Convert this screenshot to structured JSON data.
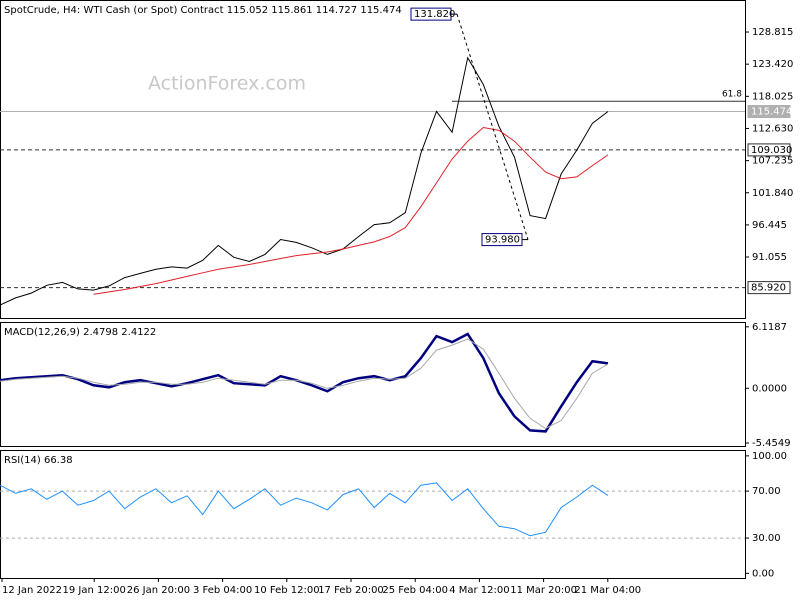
{
  "chart_data": [
    {
      "type": "line",
      "title": "SpotCrude, H4:  WTI Cash (or Spot) Contract  115.052 115.861 114.727 115.474",
      "watermark": "ActionForex.com",
      "ylim": [
        80.82,
        134.19
      ],
      "yticks": [
        128.815,
        {
          "value": 123.42,
          "label": "123.420"
        },
        118.025,
        {
          "value": 112.63,
          "label": "112.630"
        },
        107.235,
        {
          "value": 101.84,
          "label": "101.840"
        },
        96.445,
        91.055
      ],
      "series": [
        {
          "color": "#000000",
          "values": [
            83,
            84.2,
            85,
            86.3,
            86.8,
            85.7,
            85.5,
            86.2,
            87.6,
            88.3,
            89,
            89.4,
            89.2,
            90.5,
            93,
            91,
            90.3,
            91.5,
            94,
            93.5,
            92.6,
            91.5,
            92.4,
            94.5,
            96.5,
            96.8,
            98.5,
            108.5,
            115.5,
            112,
            124.5,
            120,
            113,
            107.8,
            98,
            97.5,
            105,
            109,
            113.5,
            115.474
          ]
        },
        {
          "color": "#e0202a",
          "values": [
            null,
            null,
            null,
            null,
            null,
            null,
            84.8,
            85.2,
            85.6,
            86.1,
            86.6,
            87.2,
            87.8,
            88.4,
            89,
            89.4,
            89.8,
            90.3,
            90.8,
            91.3,
            91.6,
            91.9,
            92.4,
            93,
            93.6,
            94.5,
            96,
            99.5,
            103.5,
            107.5,
            110.5,
            112.8,
            112.3,
            110.5,
            107.8,
            105.3,
            104.2,
            104.5,
            106.4,
            108.2
          ]
        }
      ],
      "levels": [
        {
          "value": 115.474,
          "label": "115.474",
          "style": "current",
          "color": "#b0b0b0"
        },
        {
          "value": 109.03,
          "label": "109.030",
          "style": "dashed",
          "color": "#303030"
        },
        {
          "value": 85.92,
          "label": "85.920",
          "style": "dashed",
          "color": "#303030"
        },
        {
          "value": 117.2,
          "label": "61.8",
          "style": "fib",
          "color": "#303030"
        }
      ],
      "annotations": [
        {
          "value": 131.82,
          "label": "131.820"
        },
        {
          "value": 93.98,
          "label": "93.980"
        }
      ]
    },
    {
      "type": "line",
      "title": "MACD(12,26,9) 2.4798 2.4122",
      "ylim": [
        -5.75,
        6.6
      ],
      "yticks": [
        6.1187,
        {
          "value": 0,
          "label": "0.0000"
        },
        -5.4549
      ],
      "series": [
        {
          "color": "#000080",
          "values": [
            0.8,
            1,
            1.1,
            1.2,
            1.3,
            0.9,
            0.3,
            0.1,
            0.6,
            0.8,
            0.5,
            0.2,
            0.5,
            0.9,
            1.3,
            0.5,
            0.4,
            0.3,
            1.2,
            0.8,
            0.3,
            -0.3,
            0.6,
            1,
            1.2,
            0.8,
            1.2,
            3,
            5.2,
            4.6,
            5.4,
            3,
            -0.5,
            -2.8,
            -4.2,
            -4.3,
            -1.8,
            0.6,
            2.7,
            2.4798
          ]
        },
        {
          "color": "#a8a8a8",
          "values": [
            0.7,
            0.9,
            1,
            1.1,
            1.2,
            1,
            0.6,
            0.3,
            0.4,
            0.6,
            0.6,
            0.4,
            0.4,
            0.6,
            1,
            0.8,
            0.6,
            0.4,
            0.8,
            0.8,
            0.5,
            0,
            0.3,
            0.7,
            1,
            0.9,
            1,
            2,
            3.8,
            4.3,
            4.9,
            3.9,
            1.5,
            -1,
            -3,
            -4,
            -3.2,
            -1,
            1.5,
            2.4122
          ]
        }
      ]
    },
    {
      "type": "line",
      "title": "RSI(14) 66.38",
      "ylim": [
        -4,
        105
      ],
      "yticks": [
        {
          "value": 100,
          "label": "100.00"
        },
        {
          "value": 70,
          "label": "70.00"
        },
        {
          "value": 30,
          "label": "30.00"
        },
        {
          "value": 0,
          "label": "0.00"
        }
      ],
      "grid_levels": [
        70,
        30
      ],
      "series": [
        {
          "color": "#1e90ff",
          "values": [
            75,
            68,
            72,
            63,
            70,
            58,
            62,
            70,
            55,
            65,
            72,
            60,
            66,
            50,
            70,
            55,
            63,
            72,
            58,
            64,
            60,
            54,
            67,
            72,
            56,
            68,
            60,
            75,
            77,
            62,
            72,
            55,
            40,
            38,
            32,
            35,
            56,
            65,
            75,
            66.38
          ]
        }
      ],
      "x_labels": [
        "12 Jan 2022",
        "19 Jan 12:00",
        "26 Jan 20:00",
        "3 Feb 04:00",
        "10 Feb 12:00",
        "17 Feb 20:00",
        "25 Feb 04:00",
        "4 Mar 12:00",
        "11 Mar 20:00",
        "21 Mar 04:00"
      ]
    }
  ]
}
